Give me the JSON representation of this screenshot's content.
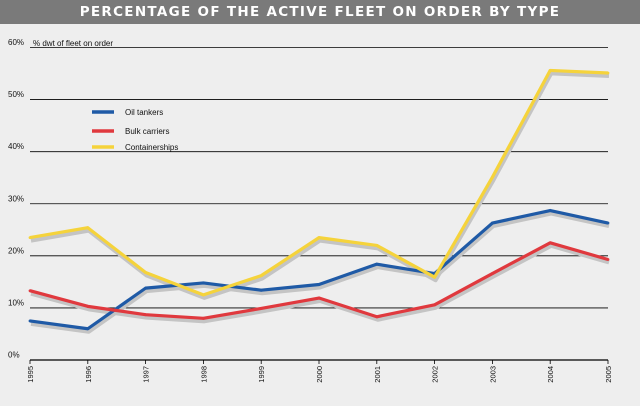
{
  "title": "PERCENTAGE OF THE ACTIVE FLEET ON ORDER BY TYPE",
  "chart_data": {
    "type": "line",
    "title": "PERCENTAGE OF THE ACTIVE FLEET ON ORDER BY TYPE",
    "ylabel": "% dwt of fleet on order",
    "xlabel": "",
    "x": [
      "1995",
      "1996",
      "1997",
      "1998",
      "1999",
      "2000",
      "2001",
      "2002",
      "2003",
      "2004",
      "2005"
    ],
    "ylim": [
      0,
      60
    ],
    "yticks": [
      0,
      10,
      20,
      30,
      40,
      50,
      60
    ],
    "ytick_labels": [
      "0%",
      "10%",
      "20%",
      "30%",
      "40%",
      "50%",
      "60%"
    ],
    "grid": true,
    "legend_position": "top-left",
    "series": [
      {
        "name": "Oil tankers",
        "color": "#1f5aa6",
        "values": [
          7.5,
          6.0,
          13.8,
          14.8,
          13.4,
          14.5,
          18.4,
          16.6,
          26.3,
          28.7,
          26.3
        ]
      },
      {
        "name": "Bulk carriers",
        "color": "#e0393e",
        "values": [
          13.3,
          10.3,
          8.7,
          8.0,
          9.9,
          11.9,
          8.3,
          10.6,
          16.6,
          22.5,
          19.3
        ]
      },
      {
        "name": "Containerships",
        "color": "#f5d33b",
        "values": [
          23.5,
          25.4,
          16.8,
          12.5,
          16.2,
          23.5,
          22.0,
          15.9,
          35.1,
          55.6,
          55.1
        ]
      }
    ]
  }
}
